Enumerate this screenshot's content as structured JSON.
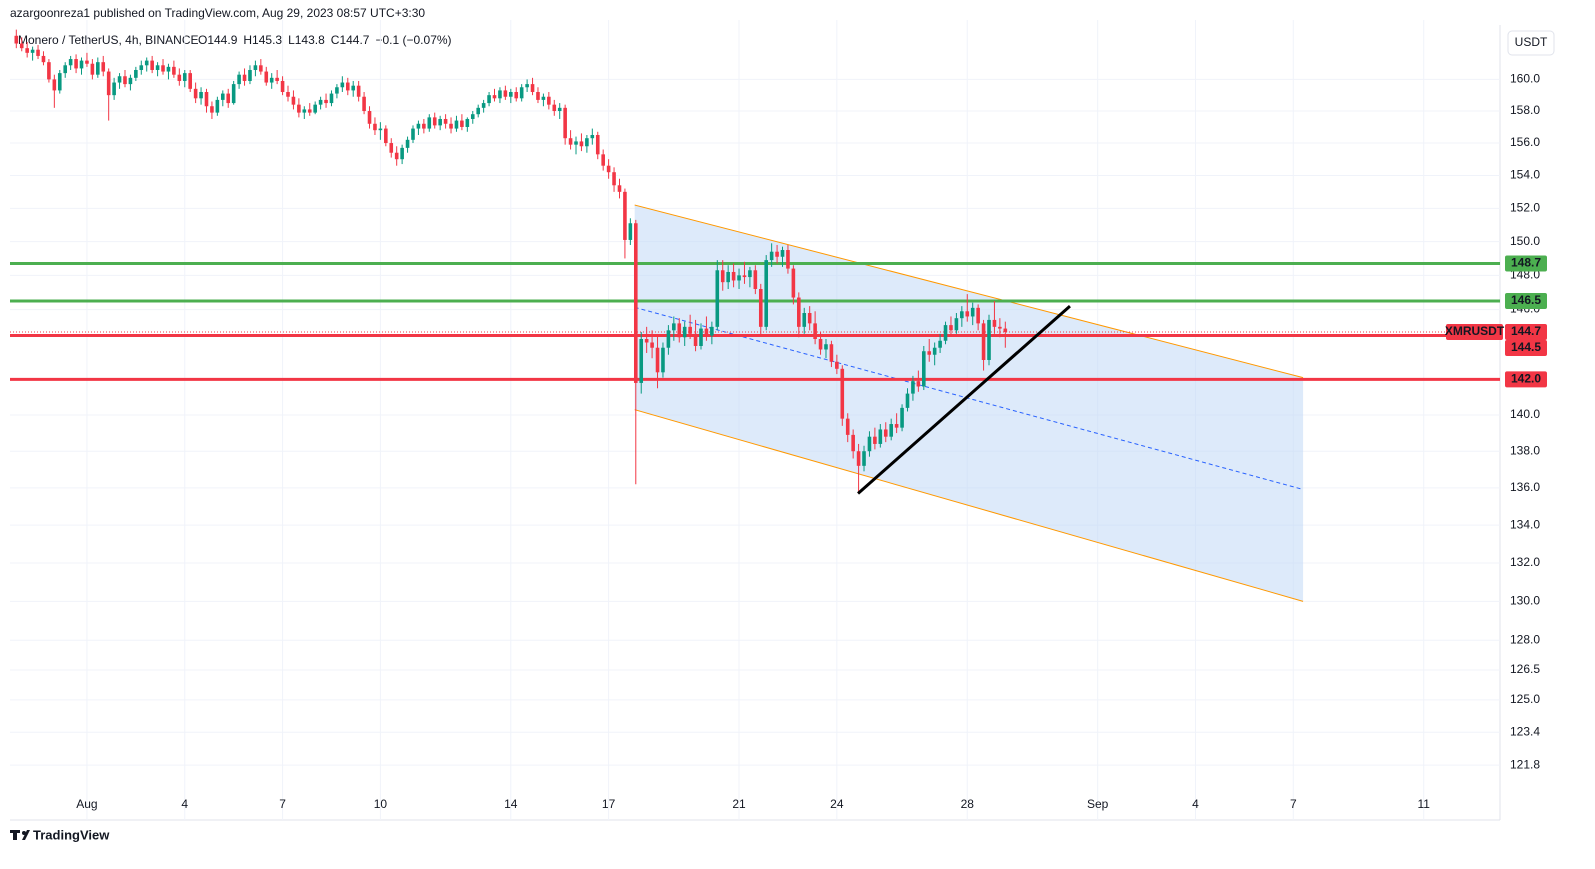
{
  "header": {
    "published": "azargoonreza1 published on TradingView.com, Aug 29, 2023 08:57 UTC+3:30",
    "symbol": "Monero / TetherUS, 4h, BINANCE",
    "ohlc": [
      "O144.9",
      "H145.3",
      "L143.8",
      "C144.7",
      "−0.1 (−0.07%)"
    ],
    "currency": "USDT",
    "brand": "TradingView"
  },
  "chart_data": {
    "type": "candlestick",
    "log_scale": true,
    "grid": true,
    "up_color": "#089981",
    "down_color": "#f23645",
    "x_start": -1.1667,
    "x_step": 0.16667,
    "xlim": [
      -1.36,
      44.34
    ],
    "xticks": [
      {
        "value": 1,
        "label": "Aug"
      },
      4,
      7,
      10,
      14,
      17,
      21,
      24,
      28,
      {
        "value": 32,
        "label": "Sep"
      },
      {
        "value": 35,
        "label": "4"
      },
      {
        "value": 38,
        "label": "7"
      },
      {
        "value": 42,
        "label": "11"
      }
    ],
    "ylim": [
      120.6,
      163.5
    ],
    "yticks": [
      {
        "value": 160,
        "label": "160.0"
      },
      {
        "value": 158,
        "label": "158.0"
      },
      {
        "value": 156,
        "label": "156.0"
      },
      {
        "value": 154,
        "label": "154.0"
      },
      {
        "value": 152,
        "label": "152.0"
      },
      {
        "value": 150,
        "label": "150.0"
      },
      {
        "value": 148,
        "label": "148.0"
      },
      {
        "value": 146,
        "label": "146.0"
      },
      {
        "value": 140,
        "label": "140.0"
      },
      {
        "value": 138,
        "label": "138.0"
      },
      {
        "value": 136,
        "label": "136.0"
      },
      {
        "value": 134,
        "label": "134.0"
      },
      {
        "value": 132,
        "label": "132.0"
      },
      {
        "value": 130,
        "label": "130.0"
      },
      {
        "value": 128,
        "label": "128.0"
      },
      126.5,
      {
        "value": 125,
        "label": "125.0"
      },
      123.4,
      121.8
    ],
    "candles": [
      [
        162.8,
        163.2,
        162.0,
        162.3
      ],
      [
        162.3,
        162.7,
        161.8,
        162.0
      ],
      [
        162.0,
        162.4,
        161.4,
        161.7
      ],
      [
        161.7,
        162.1,
        161.2,
        161.9
      ],
      [
        161.9,
        162.2,
        161.3,
        161.5
      ],
      [
        161.5,
        161.8,
        160.9,
        161.1
      ],
      [
        161.1,
        161.3,
        159.8,
        160.0
      ],
      [
        160.0,
        160.3,
        158.2,
        159.3
      ],
      [
        159.3,
        160.6,
        159.1,
        160.4
      ],
      [
        160.4,
        161.1,
        160.1,
        160.9
      ],
      [
        160.9,
        161.5,
        160.6,
        161.3
      ],
      [
        161.3,
        161.6,
        160.4,
        160.7
      ],
      [
        160.7,
        161.4,
        160.3,
        161.2
      ],
      [
        161.2,
        161.7,
        160.8,
        161.0
      ],
      [
        161.0,
        161.3,
        160.0,
        160.3
      ],
      [
        160.3,
        161.4,
        160.1,
        161.1
      ],
      [
        161.1,
        161.5,
        160.2,
        160.5
      ],
      [
        160.5,
        160.7,
        157.4,
        159.0
      ],
      [
        159.0,
        160.1,
        158.7,
        159.8
      ],
      [
        159.8,
        160.4,
        159.4,
        160.2
      ],
      [
        160.2,
        160.6,
        159.5,
        159.7
      ],
      [
        159.7,
        160.3,
        159.3,
        160.1
      ],
      [
        160.1,
        160.8,
        159.9,
        160.6
      ],
      [
        160.6,
        161.2,
        160.3,
        160.9
      ],
      [
        160.9,
        161.4,
        160.5,
        161.2
      ],
      [
        161.2,
        161.5,
        160.4,
        160.6
      ],
      [
        160.6,
        161.1,
        160.2,
        160.9
      ],
      [
        160.9,
        161.3,
        160.3,
        160.5
      ],
      [
        160.5,
        161.0,
        160.0,
        160.8
      ],
      [
        160.8,
        161.2,
        160.1,
        160.3
      ],
      [
        160.3,
        160.7,
        159.6,
        159.9
      ],
      [
        159.9,
        160.6,
        159.5,
        160.4
      ],
      [
        160.4,
        160.6,
        159.2,
        159.4
      ],
      [
        159.4,
        159.8,
        158.5,
        158.8
      ],
      [
        158.8,
        159.5,
        158.4,
        159.2
      ],
      [
        159.2,
        159.4,
        157.9,
        158.3
      ],
      [
        158.3,
        158.6,
        157.5,
        157.9
      ],
      [
        157.9,
        158.9,
        157.7,
        158.7
      ],
      [
        158.7,
        159.3,
        158.3,
        159.1
      ],
      [
        159.1,
        159.4,
        158.2,
        158.5
      ],
      [
        158.5,
        159.9,
        158.4,
        159.7
      ],
      [
        159.7,
        160.5,
        159.4,
        160.3
      ],
      [
        160.3,
        160.7,
        159.6,
        159.9
      ],
      [
        159.9,
        160.9,
        159.7,
        160.6
      ],
      [
        160.6,
        161.2,
        160.2,
        160.9
      ],
      [
        160.9,
        161.3,
        160.3,
        160.5
      ],
      [
        160.5,
        160.8,
        159.6,
        159.8
      ],
      [
        159.8,
        160.4,
        159.4,
        160.1
      ],
      [
        160.1,
        160.6,
        159.7,
        159.9
      ],
      [
        159.9,
        160.2,
        159.0,
        159.2
      ],
      [
        159.2,
        159.6,
        158.6,
        158.9
      ],
      [
        158.9,
        159.3,
        158.1,
        158.4
      ],
      [
        158.4,
        158.8,
        157.6,
        157.9
      ],
      [
        157.9,
        158.3,
        157.5,
        158.1
      ],
      [
        158.1,
        158.5,
        157.7,
        157.9
      ],
      [
        157.9,
        158.6,
        157.8,
        158.4
      ],
      [
        158.4,
        158.9,
        158.1,
        158.7
      ],
      [
        158.7,
        159.1,
        158.2,
        158.5
      ],
      [
        158.5,
        159.3,
        158.3,
        159.1
      ],
      [
        159.1,
        159.7,
        158.8,
        159.5
      ],
      [
        159.5,
        160.2,
        159.2,
        159.8
      ],
      [
        159.8,
        160.1,
        159.0,
        159.3
      ],
      [
        159.3,
        159.9,
        158.9,
        159.6
      ],
      [
        159.6,
        159.9,
        158.6,
        158.9
      ],
      [
        158.9,
        159.2,
        157.8,
        158.0
      ],
      [
        158.0,
        158.3,
        156.9,
        157.2
      ],
      [
        157.2,
        157.6,
        156.5,
        156.8
      ],
      [
        156.8,
        157.3,
        156.2,
        156.9
      ],
      [
        156.9,
        157.1,
        155.8,
        156.0
      ],
      [
        156.0,
        156.3,
        155.1,
        155.4
      ],
      [
        155.4,
        155.8,
        154.6,
        155.0
      ],
      [
        155.0,
        155.9,
        154.7,
        155.7
      ],
      [
        155.7,
        156.4,
        155.4,
        156.2
      ],
      [
        156.2,
        157.1,
        156.0,
        156.9
      ],
      [
        156.9,
        157.4,
        156.5,
        157.2
      ],
      [
        157.2,
        157.5,
        156.6,
        156.9
      ],
      [
        156.9,
        157.8,
        156.7,
        157.6
      ],
      [
        157.6,
        157.9,
        156.9,
        157.1
      ],
      [
        157.1,
        157.7,
        156.8,
        157.5
      ],
      [
        157.5,
        157.8,
        156.9,
        157.2
      ],
      [
        157.2,
        157.6,
        156.6,
        156.9
      ],
      [
        156.9,
        157.7,
        156.7,
        157.4
      ],
      [
        157.4,
        157.8,
        156.8,
        157.0
      ],
      [
        157.0,
        157.6,
        156.7,
        157.5
      ],
      [
        157.5,
        158.0,
        157.2,
        157.8
      ],
      [
        157.8,
        158.4,
        157.6,
        158.2
      ],
      [
        158.2,
        158.7,
        157.9,
        158.5
      ],
      [
        158.5,
        159.2,
        158.3,
        159.0
      ],
      [
        159.0,
        159.4,
        158.6,
        158.8
      ],
      [
        158.8,
        159.5,
        158.5,
        159.3
      ],
      [
        159.3,
        159.6,
        158.7,
        158.9
      ],
      [
        158.9,
        159.4,
        158.5,
        159.2
      ],
      [
        159.2,
        159.5,
        158.6,
        158.8
      ],
      [
        158.8,
        159.7,
        158.6,
        159.5
      ],
      [
        159.5,
        160.0,
        159.2,
        159.7
      ],
      [
        159.7,
        160.1,
        159.0,
        159.2
      ],
      [
        159.2,
        159.5,
        158.5,
        158.7
      ],
      [
        158.7,
        159.1,
        158.3,
        158.9
      ],
      [
        158.9,
        159.2,
        158.1,
        158.4
      ],
      [
        158.4,
        158.7,
        157.7,
        158.0
      ],
      [
        158.0,
        158.5,
        157.5,
        158.2
      ],
      [
        158.2,
        158.4,
        155.9,
        156.3
      ],
      [
        156.3,
        156.8,
        155.6,
        155.9
      ],
      [
        155.9,
        156.4,
        155.3,
        156.1
      ],
      [
        156.1,
        156.6,
        155.5,
        155.8
      ],
      [
        155.8,
        156.5,
        155.4,
        156.3
      ],
      [
        156.3,
        156.9,
        155.9,
        156.5
      ],
      [
        156.5,
        156.7,
        155.0,
        155.3
      ],
      [
        155.3,
        155.6,
        154.3,
        154.6
      ],
      [
        154.6,
        155.0,
        153.8,
        154.2
      ],
      [
        154.2,
        154.5,
        153.0,
        153.4
      ],
      [
        153.4,
        153.8,
        152.6,
        153.0
      ],
      [
        153.0,
        153.2,
        149.0,
        150.1
      ],
      [
        150.1,
        151.4,
        149.8,
        151.1
      ],
      [
        151.1,
        151.3,
        136.2,
        141.8
      ],
      [
        141.8,
        144.7,
        141.2,
        144.3
      ],
      [
        144.3,
        145.0,
        143.5,
        144.1
      ],
      [
        144.1,
        144.8,
        143.2,
        143.8
      ],
      [
        143.8,
        144.5,
        141.5,
        142.4
      ],
      [
        142.4,
        144.1,
        142.1,
        143.8
      ],
      [
        143.8,
        145.1,
        143.4,
        144.8
      ],
      [
        144.8,
        145.6,
        144.2,
        145.2
      ],
      [
        145.2,
        145.5,
        144.1,
        144.4
      ],
      [
        144.4,
        145.3,
        143.9,
        145.0
      ],
      [
        145.0,
        145.7,
        144.3,
        144.6
      ],
      [
        144.6,
        145.4,
        143.6,
        143.9
      ],
      [
        143.9,
        145.2,
        143.7,
        144.9
      ],
      [
        144.9,
        145.6,
        144.2,
        144.5
      ],
      [
        144.5,
        145.3,
        144.0,
        145.0
      ],
      [
        145.0,
        148.9,
        144.8,
        148.3
      ],
      [
        148.3,
        148.9,
        147.1,
        147.6
      ],
      [
        147.6,
        148.6,
        147.2,
        148.2
      ],
      [
        148.2,
        148.7,
        147.3,
        147.7
      ],
      [
        147.7,
        148.4,
        147.2,
        148.0
      ],
      [
        148.0,
        148.8,
        147.5,
        147.9
      ],
      [
        147.9,
        148.5,
        147.3,
        148.3
      ],
      [
        148.3,
        148.6,
        146.9,
        147.2
      ],
      [
        147.2,
        147.5,
        144.5,
        145.0
      ],
      [
        145.0,
        149.2,
        144.8,
        148.9
      ],
      [
        148.9,
        149.9,
        148.5,
        149.4
      ],
      [
        149.4,
        149.8,
        148.7,
        149.1
      ],
      [
        149.1,
        149.7,
        148.5,
        149.5
      ],
      [
        149.5,
        149.8,
        148.1,
        148.4
      ],
      [
        148.4,
        148.6,
        146.3,
        146.7
      ],
      [
        146.7,
        147.0,
        144.4,
        145.0
      ],
      [
        145.0,
        146.1,
        144.6,
        145.8
      ],
      [
        145.8,
        146.2,
        144.8,
        145.2
      ],
      [
        145.2,
        145.9,
        144.0,
        144.3
      ],
      [
        144.3,
        144.7,
        143.4,
        143.7
      ],
      [
        143.7,
        144.3,
        143.2,
        144.0
      ],
      [
        144.0,
        144.2,
        142.7,
        143.0
      ],
      [
        143.0,
        143.4,
        142.3,
        142.6
      ],
      [
        142.6,
        142.8,
        139.4,
        139.8
      ],
      [
        139.8,
        140.1,
        138.5,
        138.9
      ],
      [
        138.9,
        139.2,
        137.6,
        138.0
      ],
      [
        138.0,
        138.4,
        135.7,
        137.2
      ],
      [
        137.2,
        138.3,
        136.9,
        138.0
      ],
      [
        138.0,
        139.1,
        137.7,
        138.8
      ],
      [
        138.8,
        139.3,
        138.1,
        138.4
      ],
      [
        138.4,
        139.5,
        138.2,
        139.2
      ],
      [
        139.2,
        139.6,
        138.5,
        138.8
      ],
      [
        138.8,
        139.8,
        138.6,
        139.5
      ],
      [
        139.5,
        140.1,
        139.0,
        139.3
      ],
      [
        139.3,
        140.6,
        139.1,
        140.4
      ],
      [
        140.4,
        141.5,
        140.2,
        141.2
      ],
      [
        141.2,
        142.2,
        140.8,
        141.9
      ],
      [
        141.9,
        142.5,
        141.3,
        141.6
      ],
      [
        141.6,
        143.9,
        141.4,
        143.6
      ],
      [
        143.6,
        144.3,
        143.0,
        143.4
      ],
      [
        143.4,
        144.1,
        142.8,
        143.8
      ],
      [
        143.8,
        144.6,
        143.5,
        144.2
      ],
      [
        144.2,
        145.3,
        144.0,
        145.1
      ],
      [
        145.1,
        145.6,
        144.5,
        144.8
      ],
      [
        144.8,
        145.8,
        144.6,
        145.5
      ],
      [
        145.5,
        146.2,
        145.0,
        145.9
      ],
      [
        145.9,
        146.9,
        145.3,
        145.6
      ],
      [
        145.6,
        146.4,
        145.1,
        146.1
      ],
      [
        146.1,
        146.3,
        144.8,
        145.2
      ],
      [
        145.2,
        145.4,
        142.5,
        143.1
      ],
      [
        143.1,
        145.7,
        142.8,
        145.4
      ],
      [
        145.4,
        146.5,
        144.6,
        145.0
      ],
      [
        145.0,
        145.5,
        144.4,
        144.9
      ],
      [
        144.9,
        145.3,
        143.8,
        144.7
      ]
    ],
    "levels": [
      {
        "value": 148.7,
        "color": "#4caf50"
      },
      {
        "value": 146.5,
        "color": "#4caf50"
      },
      {
        "value": 144.5,
        "color": "#f23645"
      },
      {
        "value": 142,
        "label": "142.0",
        "color": "#f23645"
      }
    ],
    "last_price": 144.7,
    "symbol_label": "XMRUSDT",
    "channel": {
      "x": [
        17.8,
        38.3
      ],
      "upper": [
        152.2,
        142.1
      ],
      "lower": [
        140.3,
        130.0
      ],
      "color": "#ff9800",
      "fill": "#bbd6f5"
    },
    "trendline": {
      "x": [
        24.65,
        31.15
      ],
      "y": [
        135.7,
        146.2
      ],
      "color": "#000000"
    }
  }
}
